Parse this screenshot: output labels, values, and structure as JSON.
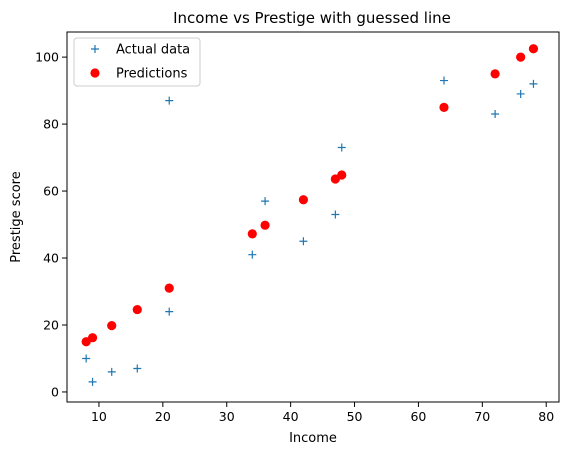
{
  "chart_data": {
    "type": "scatter",
    "title": "Income vs Prestige with guessed line",
    "xlabel": "Income",
    "ylabel": "Prestige score",
    "xlim": [
      5.0,
      82.0
    ],
    "ylim": [
      -3.0,
      107.5
    ],
    "xticks": [
      10,
      20,
      30,
      40,
      50,
      60,
      70,
      80
    ],
    "yticks": [
      0,
      20,
      40,
      60,
      80,
      100
    ],
    "grid": false,
    "legend_position": "top-left",
    "series": [
      {
        "name": "Actual data",
        "marker": "plus",
        "color": "#1f77b4",
        "points": [
          [
            8,
            10
          ],
          [
            9,
            3
          ],
          [
            12,
            6
          ],
          [
            16,
            7
          ],
          [
            21,
            87
          ],
          [
            21,
            24
          ],
          [
            34,
            41
          ],
          [
            36,
            57
          ],
          [
            42,
            45
          ],
          [
            47,
            53
          ],
          [
            48,
            73
          ],
          [
            64,
            93
          ],
          [
            72,
            83
          ],
          [
            76,
            89
          ],
          [
            78,
            92
          ]
        ]
      },
      {
        "name": "Predictions",
        "marker": "circle",
        "color": "#ff0000",
        "points": [
          [
            8,
            15
          ],
          [
            9,
            16.2
          ],
          [
            12,
            19.8
          ],
          [
            16,
            24.6
          ],
          [
            21,
            31
          ],
          [
            34,
            47.2
          ],
          [
            36,
            49.8
          ],
          [
            42,
            57.4
          ],
          [
            47,
            63.6
          ],
          [
            48,
            64.8
          ],
          [
            64,
            85
          ],
          [
            72,
            95
          ],
          [
            76,
            100
          ],
          [
            78,
            102.5
          ]
        ]
      }
    ]
  }
}
